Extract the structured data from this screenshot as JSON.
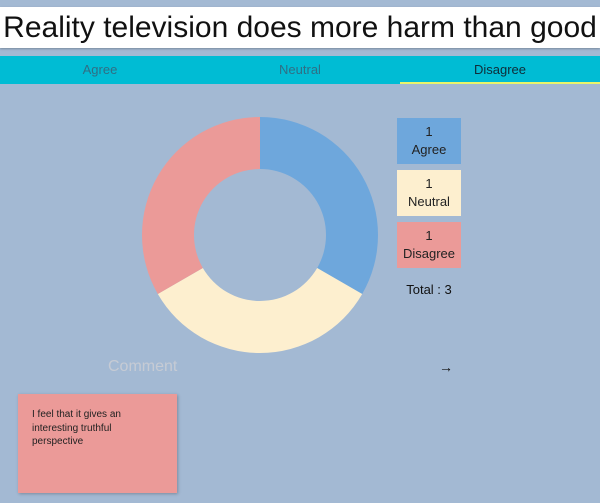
{
  "title": "Reality television does more harm than good",
  "tabs": [
    {
      "label": "Agree",
      "active": false
    },
    {
      "label": "Neutral",
      "active": false
    },
    {
      "label": "Disagree",
      "active": true
    }
  ],
  "chart_data": {
    "type": "pie",
    "categories": [
      "Agree",
      "Neutral",
      "Disagree"
    ],
    "values": [
      1,
      1,
      1
    ],
    "colors": [
      "#6ea7dc",
      "#fdefcf",
      "#eb9a98"
    ],
    "title": ""
  },
  "legend": [
    {
      "count": "1",
      "label": "Agree",
      "color": "#6ea7dc"
    },
    {
      "count": "1",
      "label": "Neutral",
      "color": "#fdefcf"
    },
    {
      "count": "1",
      "label": "Disagree",
      "color": "#eb9a98"
    }
  ],
  "total_label": "Total : 3",
  "comment": {
    "placeholder": "Comment",
    "value": "",
    "send_icon": "arrow-right-icon"
  },
  "comments": [
    {
      "text": "I feel that it gives an interesting truthful perspective",
      "color": "#eb9a98"
    }
  ]
}
